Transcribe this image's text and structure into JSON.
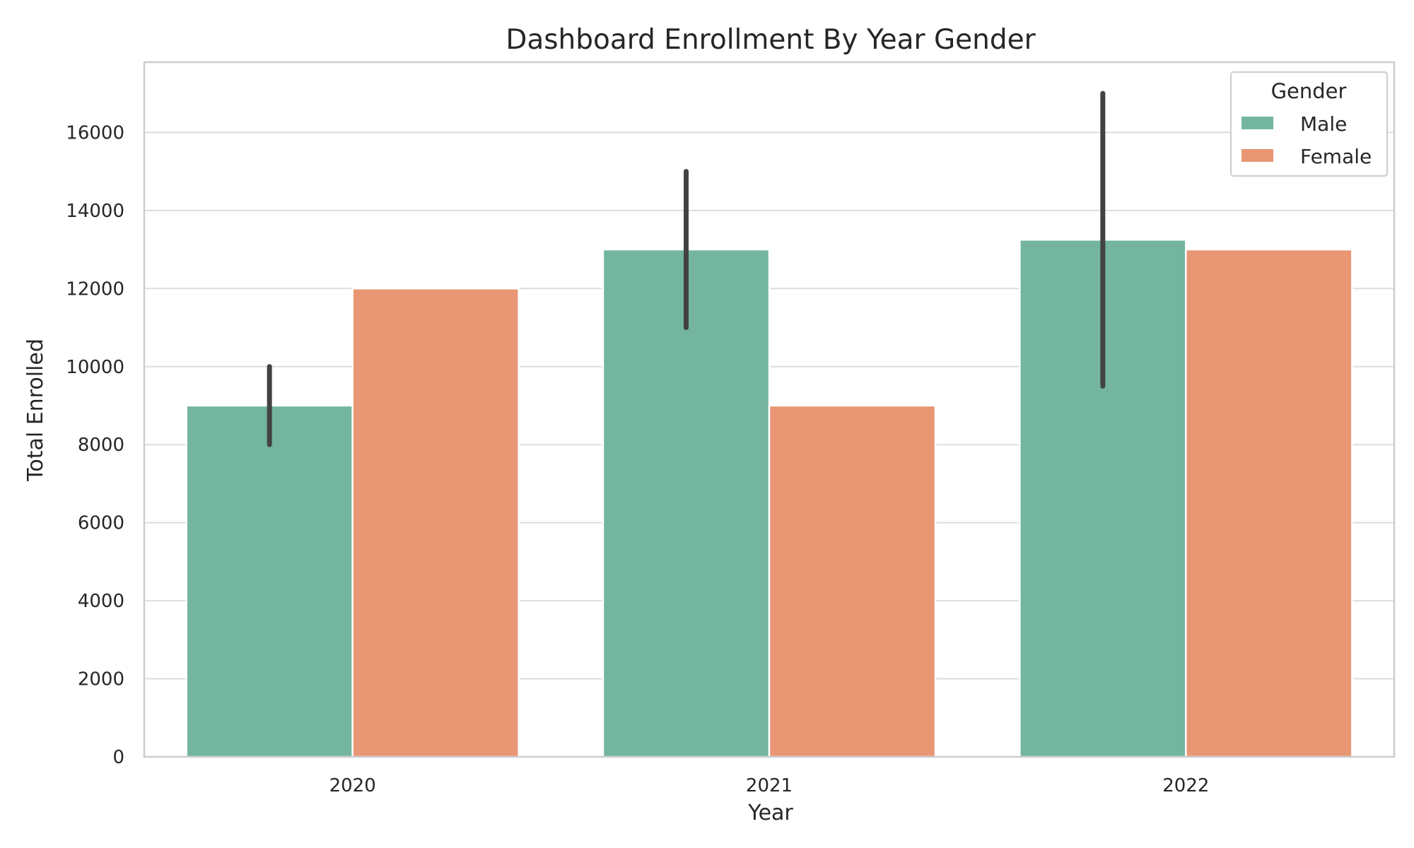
{
  "chart_data": {
    "type": "bar",
    "title": "Dashboard Enrollment By Year Gender",
    "xlabel": "Year",
    "ylabel": "Total Enrolled",
    "categories": [
      "2020",
      "2021",
      "2022"
    ],
    "ylim": [
      0,
      17800
    ],
    "yticks": [
      0,
      2000,
      4000,
      6000,
      8000,
      10000,
      12000,
      14000,
      16000
    ],
    "grid": true,
    "legend": {
      "title": "Gender",
      "placement": "top-right"
    },
    "series": [
      {
        "name": "Male",
        "color": "#73b59f",
        "values": [
          9000,
          13000,
          13250
        ],
        "error_low": [
          8000,
          11000,
          9500
        ],
        "error_high": [
          10000,
          15000,
          17000
        ]
      },
      {
        "name": "Female",
        "color": "#e89674",
        "values": [
          12000,
          9000,
          13000
        ],
        "error_low": [
          null,
          null,
          null
        ],
        "error_high": [
          null,
          null,
          null
        ]
      }
    ]
  }
}
